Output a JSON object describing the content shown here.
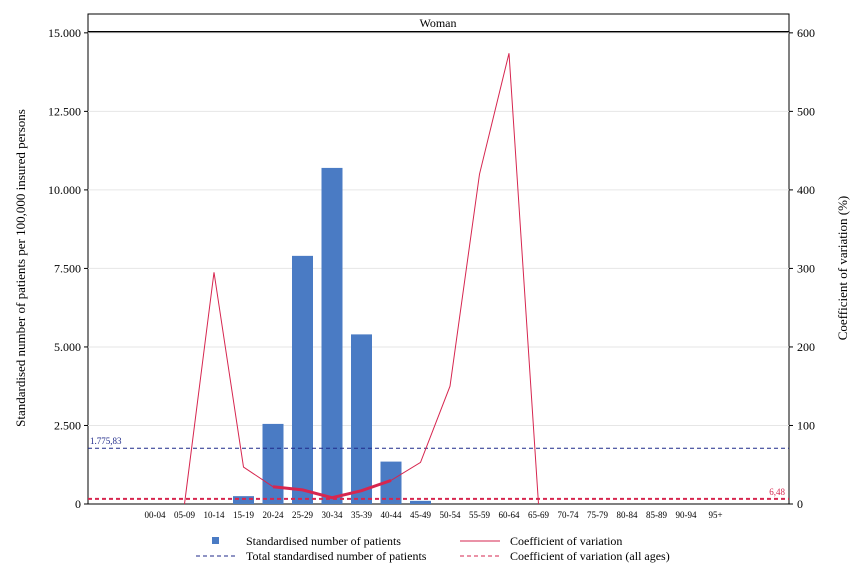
{
  "chart_data": {
    "type": "bar",
    "panel_title": "Woman",
    "ylabel": "Standardised number of patients per 100,000 insured persons",
    "y2label": "Coefficient of variation (%)",
    "ylim": [
      0,
      15600
    ],
    "y2lim": [
      0,
      624
    ],
    "yticks": [
      {
        "v": 0,
        "label": "0"
      },
      {
        "v": 2500,
        "label": "2.500"
      },
      {
        "v": 5000,
        "label": "5.000"
      },
      {
        "v": 7500,
        "label": "7.500"
      },
      {
        "v": 10000,
        "label": "10.000"
      },
      {
        "v": 12500,
        "label": "12.500"
      },
      {
        "v": 15000,
        "label": "15.000"
      }
    ],
    "y2ticks": [
      {
        "v": 0,
        "label": "0"
      },
      {
        "v": 100,
        "label": "100"
      },
      {
        "v": 200,
        "label": "200"
      },
      {
        "v": 300,
        "label": "300"
      },
      {
        "v": 400,
        "label": "400"
      },
      {
        "v": 500,
        "label": "500"
      },
      {
        "v": 600,
        "label": "600"
      }
    ],
    "categories": [
      "00-04",
      "05-09",
      "10-14",
      "15-19",
      "20-24",
      "25-29",
      "30-34",
      "35-39",
      "40-44",
      "45-49",
      "50-54",
      "55-59",
      "60-64",
      "65-69",
      "70-74",
      "75-79",
      "80-84",
      "85-89",
      "90-94",
      "95+"
    ],
    "series": [
      {
        "name": "Standardised number of patients",
        "kind": "bar",
        "axis": "left",
        "color": "#4a7bc4",
        "values": [
          0,
          0,
          0,
          250,
          2550,
          7900,
          10700,
          5400,
          1350,
          100,
          0,
          0,
          0,
          0,
          0,
          0,
          0,
          0,
          0,
          0
        ]
      },
      {
        "name": "Coefficient of variation",
        "kind": "line",
        "axis": "right",
        "color": "#d6264f",
        "values": [
          null,
          0,
          295,
          47,
          22,
          18,
          8,
          17,
          30,
          53,
          150,
          420,
          574,
          0,
          null,
          null,
          null,
          null,
          null,
          null
        ],
        "emphasis_range": [
          4,
          8
        ]
      }
    ],
    "reference_lines": [
      {
        "name": "Total standardised number of patients",
        "axis": "left",
        "value": 1775.83,
        "label": "1.775,83",
        "color": "#1f2a8a",
        "label_pos": "left"
      },
      {
        "name": "Coefficient of variation (all ages)",
        "axis": "right",
        "value": 6.48,
        "label": "6,48",
        "color": "#d6264f",
        "label_pos": "right"
      }
    ],
    "legend_position": "bottom",
    "grid": "horizontal"
  }
}
